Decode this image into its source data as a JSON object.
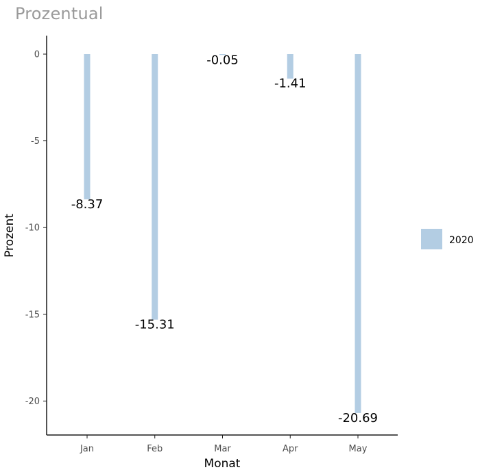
{
  "title": "Prozentual",
  "colors": {
    "bar": "#b3cde3",
    "axis": "#1a1a1a"
  },
  "chart_data": {
    "type": "bar",
    "title": "Prozentual",
    "xlabel": "Monat",
    "ylabel": "Prozent",
    "categories": [
      "Jan",
      "Feb",
      "Mar",
      "Apr",
      "May"
    ],
    "series": [
      {
        "name": "2020",
        "values": [
          -8.37,
          -15.31,
          -0.05,
          -1.41,
          -20.69
        ]
      }
    ],
    "data_labels": [
      "-8.37",
      "-15.31",
      "-0.05",
      "-1.41",
      "-20.69"
    ],
    "ylim": [
      -22,
      0
    ],
    "yticks": [
      0,
      -5,
      -10,
      -15,
      -20
    ],
    "ytick_labels": [
      "0",
      "-5",
      "-10",
      "-15",
      "-20"
    ],
    "grid": false,
    "legend_position": "right"
  }
}
